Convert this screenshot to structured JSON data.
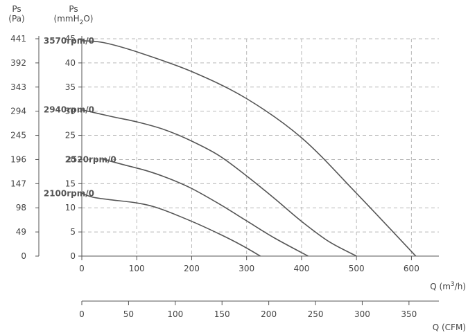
{
  "colors": {
    "curve": "#555555",
    "grid": "#b8b8b8",
    "text": "#444444"
  },
  "axes": {
    "pa_label_top": "Ps",
    "pa_label_bottom": "(Pa)",
    "mm_label_top": "Ps",
    "mm_label_bottom_prefix": "(mmH",
    "mm_label_subscript": "2",
    "mm_label_bottom_suffix": "O)",
    "q_label_prefix": "Q (m",
    "q_label_superscript": "3",
    "q_label_suffix": "/h)",
    "cfm_label": "Q (CFM)"
  },
  "chart_data": {
    "type": "line",
    "title": "",
    "x": {
      "label": "Q (m3/h)",
      "lim": [
        0,
        650
      ],
      "ticks": [
        0,
        100,
        200,
        300,
        400,
        500,
        600
      ]
    },
    "y": {
      "label": "Ps (mmH2O)",
      "lim": [
        0,
        45
      ],
      "ticks": [
        0,
        5,
        10,
        15,
        20,
        25,
        30,
        35,
        40,
        45
      ]
    },
    "y_pa": {
      "label": "Ps (Pa)",
      "ticks": [
        0,
        49,
        98,
        147,
        196,
        245,
        294,
        343,
        392,
        441
      ]
    },
    "x_cfm": {
      "label": "Q (CFM)",
      "lim": [
        0,
        382
      ],
      "ticks": [
        0,
        50,
        100,
        150,
        200,
        250,
        300,
        350
      ]
    },
    "grid": true,
    "series": [
      {
        "name": "3570rpm/0",
        "points": [
          [
            0,
            44.6
          ],
          [
            40,
            44.2
          ],
          [
            100,
            42.3
          ],
          [
            200,
            38.2
          ],
          [
            300,
            32.6
          ],
          [
            400,
            24.5
          ],
          [
            500,
            13.0
          ],
          [
            608,
            0
          ]
        ]
      },
      {
        "name": "2940rpm/0",
        "points": [
          [
            0,
            30.3
          ],
          [
            50,
            29.0
          ],
          [
            100,
            27.8
          ],
          [
            150,
            26.2
          ],
          [
            200,
            23.8
          ],
          [
            250,
            20.8
          ],
          [
            300,
            16.6
          ],
          [
            350,
            12.0
          ],
          [
            400,
            7.2
          ],
          [
            450,
            3.0
          ],
          [
            500,
            0
          ]
        ]
      },
      {
        "name": "2520rpm/0",
        "points": [
          [
            40,
            20.0
          ],
          [
            80,
            18.8
          ],
          [
            120,
            17.6
          ],
          [
            160,
            16.0
          ],
          [
            200,
            14.0
          ],
          [
            250,
            10.8
          ],
          [
            300,
            7.3
          ],
          [
            350,
            3.8
          ],
          [
            412,
            0
          ]
        ]
      },
      {
        "name": "2100rpm/0",
        "points": [
          [
            0,
            13.0
          ],
          [
            20,
            12.2
          ],
          [
            50,
            11.7
          ],
          [
            100,
            11.0
          ],
          [
            140,
            9.9
          ],
          [
            200,
            7.2
          ],
          [
            250,
            4.6
          ],
          [
            290,
            2.3
          ],
          [
            325,
            0
          ]
        ]
      }
    ]
  }
}
